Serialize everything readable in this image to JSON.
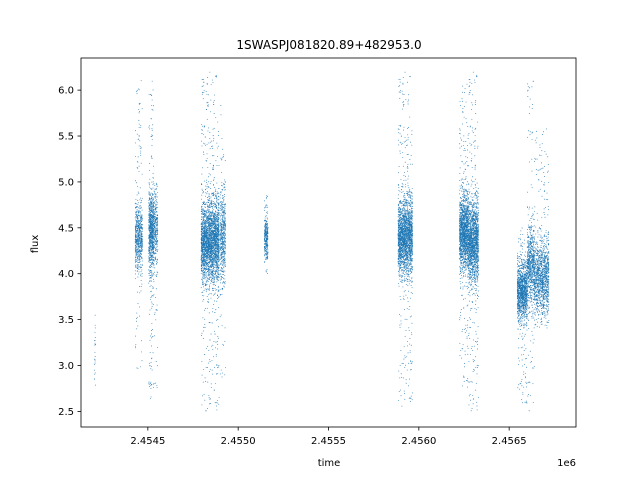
{
  "chart_data": {
    "type": "scatter",
    "title": "1SWASPJ081820.89+482953.0",
    "xlabel": "time",
    "ylabel": "flux",
    "x_offset_label": "1e6",
    "xlim": [
      2454130,
      2456870
    ],
    "ylim": [
      2.33,
      6.35
    ],
    "x_ticks": [
      {
        "value": 2454500,
        "label": "2.4545"
      },
      {
        "value": 2455000,
        "label": "2.4550"
      },
      {
        "value": 2455500,
        "label": "2.4555"
      },
      {
        "value": 2456000,
        "label": "2.4560"
      },
      {
        "value": 2456500,
        "label": "2.4565"
      }
    ],
    "y_ticks": [
      {
        "value": 2.5,
        "label": "2.5"
      },
      {
        "value": 3.0,
        "label": "3.0"
      },
      {
        "value": 3.5,
        "label": "3.5"
      },
      {
        "value": 4.0,
        "label": "4.0"
      },
      {
        "value": 4.5,
        "label": "4.5"
      },
      {
        "value": 5.0,
        "label": "5.0"
      },
      {
        "value": 5.5,
        "label": "5.5"
      },
      {
        "value": 6.0,
        "label": "6.0"
      }
    ],
    "grid": false,
    "legend": "none",
    "marker_color": "#1f77b4",
    "series": [
      {
        "clusters": [
          {
            "x_range": [
              2454205,
              2454210
            ],
            "center": 3.2,
            "spread": 0.25,
            "min": 2.64,
            "max": 3.63,
            "count": 25
          },
          {
            "x_range": [
              2454430,
              2454470
            ],
            "center": 4.4,
            "spread": 0.18,
            "min": 2.95,
            "max": 6.12,
            "count": 650
          },
          {
            "x_range": [
              2454505,
              2454532
            ],
            "center": 4.45,
            "spread": 0.22,
            "min": 2.62,
            "max": 6.1,
            "count": 850
          },
          {
            "x_range": [
              2454533,
              2454555
            ],
            "center": 4.5,
            "spread": 0.2,
            "min": 2.7,
            "max": 5.0,
            "count": 300
          },
          {
            "x_range": [
              2454795,
              2454895
            ],
            "center": 4.35,
            "spread": 0.22,
            "min": 2.5,
            "max": 6.2,
            "count": 3000
          },
          {
            "x_range": [
              2454900,
              2454930
            ],
            "center": 4.4,
            "spread": 0.25,
            "min": 2.85,
            "max": 5.9,
            "count": 500
          },
          {
            "x_range": [
              2455145,
              2455165
            ],
            "center": 4.4,
            "spread": 0.12,
            "min": 4.0,
            "max": 4.85,
            "count": 300
          },
          {
            "x_range": [
              2455885,
              2455965
            ],
            "center": 4.4,
            "spread": 0.2,
            "min": 2.55,
            "max": 6.2,
            "count": 2200
          },
          {
            "x_range": [
              2456225,
              2456275
            ],
            "center": 4.45,
            "spread": 0.2,
            "min": 2.75,
            "max": 6.1,
            "count": 1500
          },
          {
            "x_range": [
              2456275,
              2456330
            ],
            "center": 4.35,
            "spread": 0.22,
            "min": 2.5,
            "max": 6.2,
            "count": 1600
          },
          {
            "x_range": [
              2456545,
              2456600
            ],
            "center": 3.8,
            "spread": 0.15,
            "min": 2.55,
            "max": 4.5,
            "count": 1200
          },
          {
            "x_range": [
              2456600,
              2456640
            ],
            "center": 4.1,
            "spread": 0.22,
            "min": 2.5,
            "max": 6.15,
            "count": 700
          },
          {
            "x_range": [
              2456640,
              2456720
            ],
            "center": 3.95,
            "spread": 0.2,
            "min": 3.4,
            "max": 5.6,
            "count": 1200
          }
        ]
      }
    ]
  }
}
